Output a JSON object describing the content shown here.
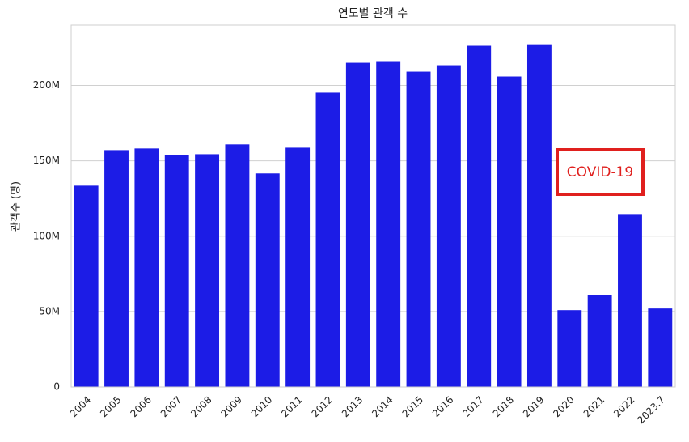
{
  "chart_data": {
    "type": "bar",
    "title": "연도별 관객 수",
    "y_label": "관객수 (명)",
    "categories": [
      "2004",
      "2005",
      "2006",
      "2007",
      "2008",
      "2009",
      "2010",
      "2011",
      "2012",
      "2013",
      "2014",
      "2015",
      "2016",
      "2017",
      "2018",
      "2019",
      "2020",
      "2021",
      "2022",
      "2023.7"
    ],
    "values": [
      133500000,
      157100000,
      158200000,
      153900000,
      154400000,
      160900000,
      141600000,
      158700000,
      195200000,
      215000000,
      216100000,
      209100000,
      213400000,
      226300000,
      205900000,
      227300000,
      50900000,
      61100000,
      114700000,
      52000000
    ],
    "color": "#1c1ce6",
    "ylim": [
      0,
      240000000
    ],
    "yticks": [
      0,
      {
        "value": 50000000,
        "label": "50M"
      },
      {
        "value": 100000000,
        "label": "100M"
      },
      {
        "value": 150000000,
        "label": "150M"
      },
      {
        "value": 200000000,
        "label": "200M"
      }
    ],
    "grid": true,
    "annotation": "COVID-19"
  }
}
